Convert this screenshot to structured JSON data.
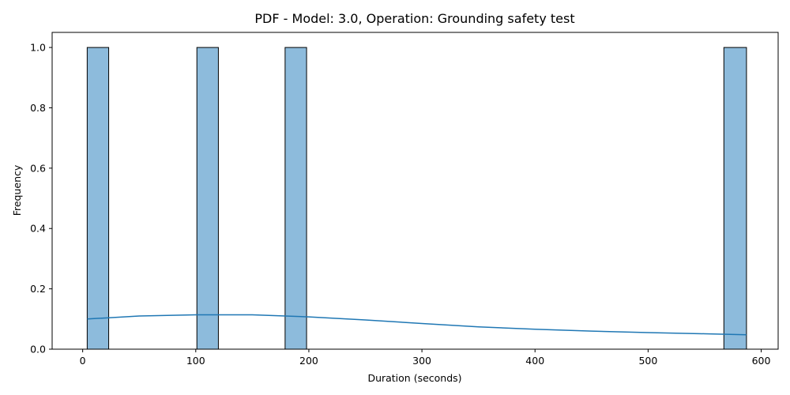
{
  "chart_data": {
    "type": "bar",
    "title": "PDF - Model: 3.0, Operation: Grounding safety test",
    "xlabel": "Duration (seconds)",
    "ylabel": "Frequency",
    "xlim": [
      -27,
      615
    ],
    "ylim": [
      0,
      1.05
    ],
    "xticks": [
      0,
      100,
      200,
      300,
      400,
      500,
      600
    ],
    "yticks": [
      0.0,
      0.2,
      0.4,
      0.6,
      0.8,
      1.0
    ],
    "xtick_labels": [
      "0",
      "100",
      "200",
      "300",
      "400",
      "500",
      "600"
    ],
    "ytick_labels": [
      "0.0",
      "0.2",
      "0.4",
      "0.6",
      "0.8",
      "1.0"
    ],
    "grid": false,
    "bar_color": "#8dbbdc",
    "bar_edge_color": "#000000",
    "line_color": "#1f77b4",
    "bins": [
      {
        "x0": 4,
        "x1": 23,
        "count": 1
      },
      {
        "x0": 101,
        "x1": 120,
        "count": 1
      },
      {
        "x0": 179,
        "x1": 198,
        "count": 1
      },
      {
        "x0": 567,
        "x1": 587,
        "count": 1
      }
    ],
    "kde": {
      "x": [
        4,
        50,
        100,
        150,
        200,
        250,
        300,
        350,
        400,
        450,
        500,
        550,
        587
      ],
      "y": [
        0.1,
        0.11,
        0.114,
        0.114,
        0.107,
        0.097,
        0.085,
        0.074,
        0.066,
        0.06,
        0.055,
        0.051,
        0.048
      ]
    }
  }
}
